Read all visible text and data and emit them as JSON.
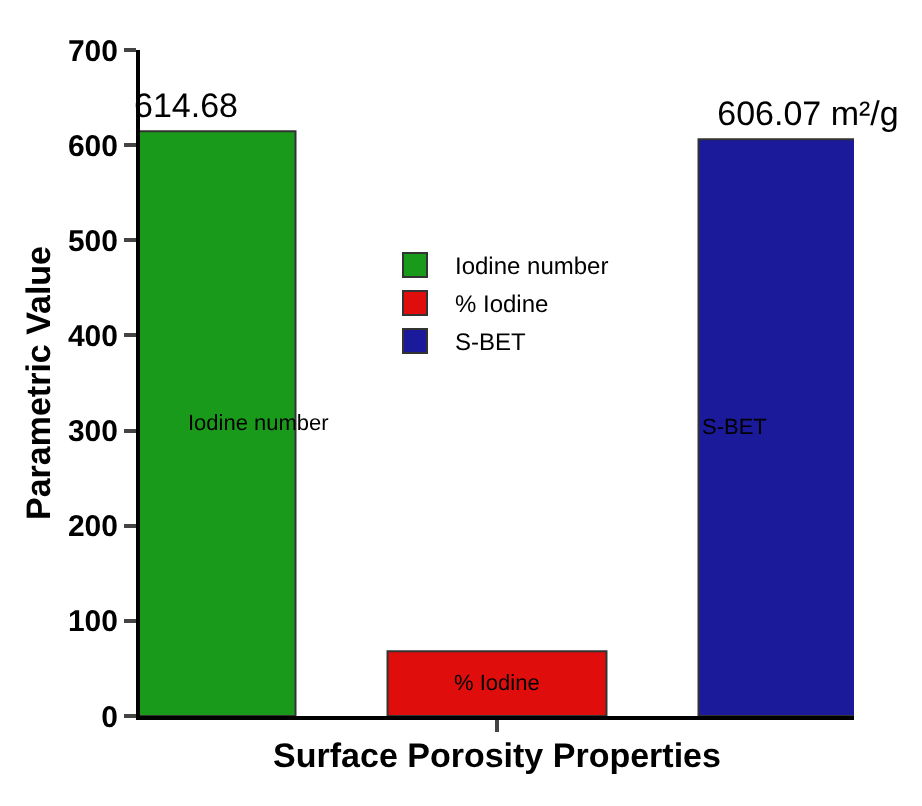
{
  "chart_data": {
    "type": "bar",
    "xlabel": "Surface Porosity Properties",
    "ylabel": "Parametric Value",
    "categories": [
      null,
      null,
      null
    ],
    "series": [
      {
        "name": "Iodine number",
        "color": "#1a9a1a",
        "values": [
          614.68,
          null,
          null
        ],
        "value_labels": [
          "614.68",
          null,
          null
        ]
      },
      {
        "name": "% Iodine",
        "color": "#e00d0d",
        "values": [
          null,
          68,
          null
        ],
        "value_labels": [
          null,
          null,
          null
        ]
      },
      {
        "name": "S-BET",
        "color": "#1a1a9a",
        "values": [
          null,
          null,
          606.07
        ],
        "value_labels": [
          null,
          null,
          "606.07 m²/g"
        ]
      }
    ],
    "annotations": [
      "Iodine number",
      "% Iodine",
      "S-BET"
    ],
    "ylim": [
      0,
      700
    ],
    "yticks": [
      0,
      100,
      200,
      300,
      400,
      500,
      600,
      700
    ],
    "grid": false,
    "legend": "center",
    "tick_labels": "y"
  }
}
